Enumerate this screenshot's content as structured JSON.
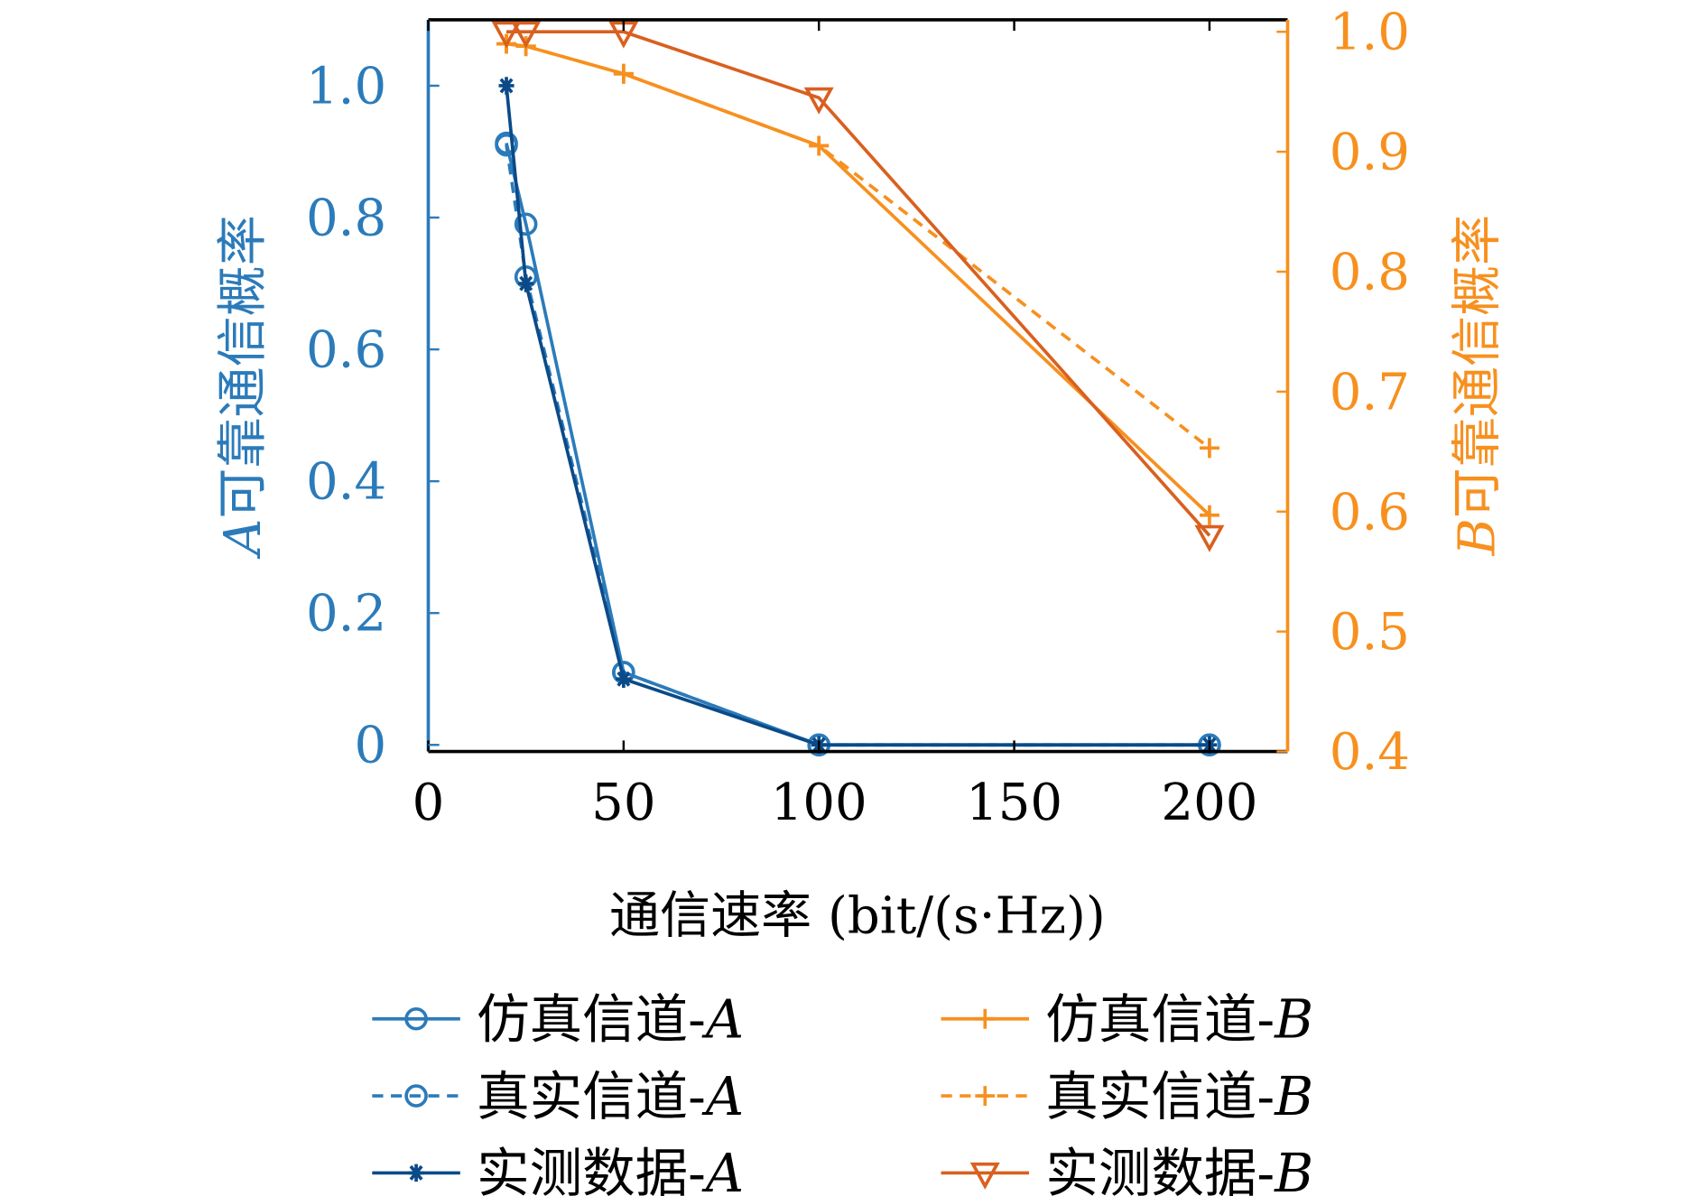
{
  "chart_data": {
    "type": "line",
    "xlabel": "通信速率 (bit/(s·Hz))",
    "ylabel_left": {
      "var": "A",
      "text": "可靠通信概率"
    },
    "ylabel_right": {
      "var": "B",
      "text": "可靠通信概率"
    },
    "xlim": [
      0,
      220
    ],
    "ylim_left": [
      -0.01,
      1.1
    ],
    "ylim_right": [
      0.4,
      1.01
    ],
    "xticks": [
      0,
      50,
      100,
      150,
      200
    ],
    "xtick_labels": [
      "0",
      "50",
      "100",
      "150",
      "200"
    ],
    "yticks_left": [
      0,
      0.2,
      0.4,
      0.6,
      0.8,
      1.0
    ],
    "ytick_labels_left": [
      "0",
      "0.2",
      "0.4",
      "0.6",
      "0.8",
      "1.0"
    ],
    "yticks_right": [
      0.4,
      0.5,
      0.6,
      0.7,
      0.8,
      0.9,
      1.0
    ],
    "ytick_labels_right": [
      "0.4",
      "0.5",
      "0.6",
      "0.7",
      "0.8",
      "0.9",
      "1.0"
    ],
    "colors": {
      "left_axis": "#2b7bba",
      "right_axis": "#f7901e"
    },
    "legend_position": "bottom",
    "series": [
      {
        "name": "仿真信道-",
        "var": "A",
        "axis": "left",
        "color": "#2b7bba",
        "dash": false,
        "marker": "circle",
        "x": [
          20,
          25,
          50,
          100,
          200
        ],
        "y": [
          0.913,
          0.79,
          0.11,
          0.0,
          0.0
        ]
      },
      {
        "name": "真实信道-",
        "var": "A",
        "axis": "left",
        "color": "#2b7bba",
        "dash": true,
        "marker": "circle",
        "x": [
          20,
          25,
          50,
          100,
          200
        ],
        "y": [
          0.91,
          0.71,
          0.11,
          0.0,
          0.0
        ]
      },
      {
        "name": "实测数据-",
        "var": "A",
        "axis": "left",
        "color": "#0b4a88",
        "dash": false,
        "marker": "star",
        "x": [
          20,
          25,
          50,
          100,
          200
        ],
        "y": [
          1.0,
          0.7,
          0.1,
          0.0,
          0.0
        ]
      },
      {
        "name": "仿真信道-",
        "var": "B",
        "axis": "right",
        "color": "#f7901e",
        "dash": false,
        "marker": "plus",
        "x": [
          20,
          25,
          50,
          100,
          200
        ],
        "y": [
          0.99,
          0.988,
          0.965,
          0.905,
          0.597
        ]
      },
      {
        "name": "真实信道-",
        "var": "B",
        "axis": "right",
        "color": "#f7901e",
        "dash": true,
        "marker": "plus",
        "x": [
          20,
          25,
          50,
          100,
          200
        ],
        "y": [
          0.99,
          0.988,
          0.965,
          0.905,
          0.653
        ]
      },
      {
        "name": "实测数据-",
        "var": "B",
        "axis": "right",
        "color": "#d9601f",
        "dash": false,
        "marker": "triangle",
        "x": [
          20,
          25,
          50,
          100,
          200
        ],
        "y": [
          1.0,
          1.0,
          1.0,
          0.945,
          0.58
        ]
      }
    ]
  }
}
